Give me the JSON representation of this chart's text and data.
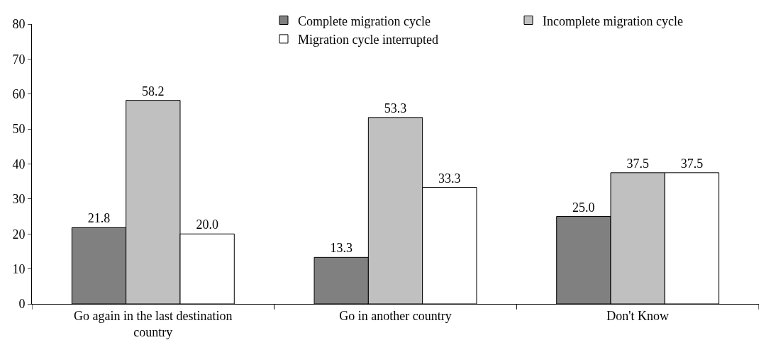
{
  "chart_data": {
    "type": "bar",
    "categories": [
      "Go again in the last destination country",
      "Go in another country",
      "Don't Know"
    ],
    "series": [
      {
        "name": "Complete migration cycle",
        "color": "#808080",
        "values": [
          21.8,
          13.3,
          25.0
        ],
        "value_labels": [
          "21.8",
          "13.3",
          "25.0"
        ]
      },
      {
        "name": "Incomplete migration cycle",
        "color": "#c0c0c0",
        "values": [
          58.2,
          53.3,
          37.5
        ],
        "value_labels": [
          "58.2",
          "53.3",
          "37.5"
        ]
      },
      {
        "name": "Migration cycle interrupted",
        "color": "#ffffff",
        "values": [
          20.0,
          33.3,
          37.5
        ],
        "value_labels": [
          "20.0",
          "33.3",
          "37.5"
        ]
      }
    ],
    "ylim": [
      0,
      80
    ],
    "yticks": [
      0,
      10,
      20,
      30,
      40,
      50,
      60,
      70,
      80
    ],
    "legend": "top right"
  }
}
